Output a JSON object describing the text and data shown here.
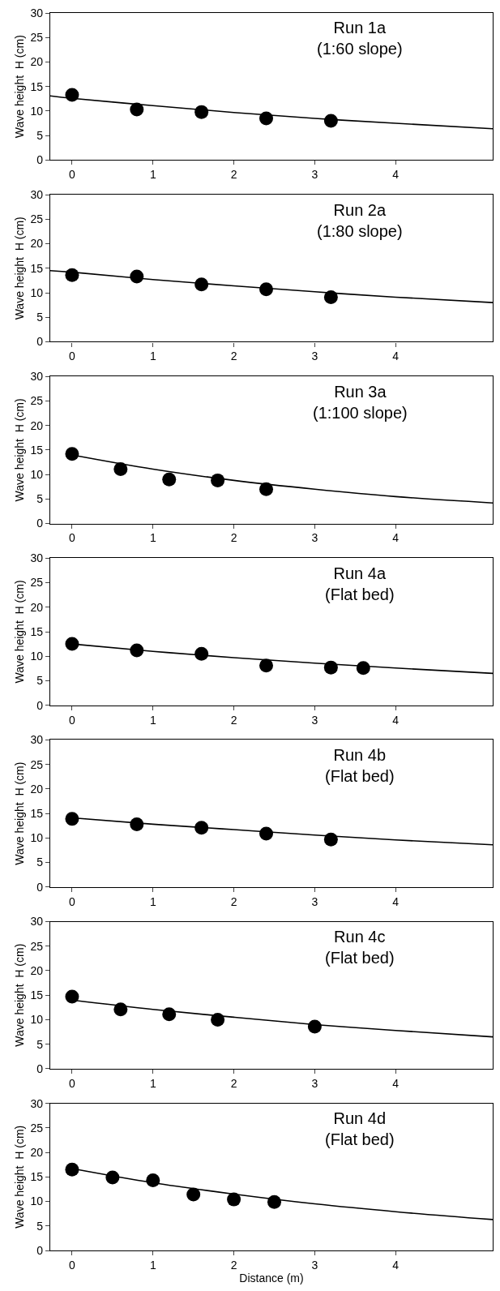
{
  "chart_data": [
    {
      "type": "scatter",
      "title": "Run 1a",
      "subtitle": "(1:60 slope)",
      "ylabel": "Wave height  H (cm)",
      "xlim": [
        -0.27,
        5.2
      ],
      "xticks": [
        0,
        1,
        2,
        3,
        4
      ],
      "ylim": [
        0,
        30
      ],
      "yticks": [
        0,
        5,
        10,
        15,
        20,
        25,
        30
      ],
      "series": [
        {
          "color": "#000000",
          "marker": "circle",
          "x": [
            0,
            0.8,
            1.6,
            2.4,
            3.2
          ],
          "values": [
            13.3,
            10.3,
            9.8,
            8.5,
            8.0
          ]
        },
        {
          "type": "line",
          "marker": "none",
          "color": "#000000",
          "line_style": "solid",
          "x": [
            -0.27,
            0,
            1,
            2,
            3,
            4,
            5.2
          ],
          "values": [
            13.1,
            12.6,
            11.1,
            9.7,
            8.5,
            7.5,
            6.4
          ]
        }
      ]
    },
    {
      "type": "scatter",
      "title": "Run 2a",
      "subtitle": "(1:80 slope)",
      "ylabel": "Wave height  H (cm)",
      "xlim": [
        -0.27,
        5.2
      ],
      "xticks": [
        0,
        1,
        2,
        3,
        4
      ],
      "ylim": [
        0,
        30
      ],
      "yticks": [
        0,
        5,
        10,
        15,
        20,
        25,
        30
      ],
      "series": [
        {
          "color": "#000000",
          "marker": "circle",
          "x": [
            0,
            0.8,
            1.6,
            2.4,
            3.2
          ],
          "values": [
            13.6,
            13.3,
            11.7,
            10.7,
            9.1
          ]
        },
        {
          "type": "line",
          "marker": "none",
          "color": "#000000",
          "line_style": "solid",
          "x": [
            -0.27,
            0,
            1,
            2,
            3,
            4,
            5.2
          ],
          "values": [
            14.5,
            14.2,
            12.7,
            11.4,
            10.2,
            9.1,
            8.0
          ]
        }
      ]
    },
    {
      "type": "scatter",
      "title": "Run 3a",
      "subtitle": "(1:100 slope)",
      "ylabel": "Wave height  H (cm)",
      "xlim": [
        -0.27,
        5.2
      ],
      "xticks": [
        0,
        1,
        2,
        3,
        4
      ],
      "ylim": [
        0,
        30
      ],
      "yticks": [
        0,
        5,
        10,
        15,
        20,
        25,
        30
      ],
      "series": [
        {
          "color": "#000000",
          "marker": "circle",
          "x": [
            0,
            0.6,
            1.2,
            1.8,
            2.4
          ],
          "values": [
            14.2,
            11.1,
            9.0,
            8.8,
            7.0
          ]
        },
        {
          "type": "line",
          "marker": "none",
          "color": "#000000",
          "line_style": "solid",
          "x": [
            0,
            1,
            2,
            3,
            4,
            5.2
          ],
          "values": [
            14.0,
            11.1,
            8.8,
            7.0,
            5.5,
            4.2
          ]
        }
      ]
    },
    {
      "type": "scatter",
      "title": "Run 4a",
      "subtitle": "(Flat bed)",
      "ylabel": "Wave height  H (cm)",
      "xlim": [
        -0.27,
        5.2
      ],
      "xticks": [
        0,
        1,
        2,
        3,
        4
      ],
      "ylim": [
        0,
        30
      ],
      "yticks": [
        0,
        5,
        10,
        15,
        20,
        25,
        30
      ],
      "series": [
        {
          "color": "#000000",
          "marker": "circle",
          "x": [
            0,
            0.8,
            1.6,
            2.4,
            3.2,
            3.6
          ],
          "values": [
            12.5,
            11.2,
            10.5,
            8.1,
            7.7,
            7.6
          ]
        },
        {
          "type": "line",
          "marker": "none",
          "color": "#000000",
          "line_style": "solid",
          "x": [
            0,
            1,
            2,
            3,
            4,
            5.2
          ],
          "values": [
            12.5,
            11.0,
            9.7,
            8.6,
            7.6,
            6.5
          ]
        }
      ]
    },
    {
      "type": "scatter",
      "title": "Run 4b",
      "subtitle": "(Flat bed)",
      "ylabel": "Wave height  H (cm)",
      "xlim": [
        -0.27,
        5.2
      ],
      "xticks": [
        0,
        1,
        2,
        3,
        4
      ],
      "ylim": [
        0,
        30
      ],
      "yticks": [
        0,
        5,
        10,
        15,
        20,
        25,
        30
      ],
      "series": [
        {
          "color": "#000000",
          "marker": "circle",
          "x": [
            0,
            0.8,
            1.6,
            2.4,
            3.2
          ],
          "values": [
            13.9,
            12.8,
            12.1,
            10.9,
            9.7
          ]
        },
        {
          "type": "line",
          "marker": "none",
          "color": "#000000",
          "line_style": "solid",
          "x": [
            0,
            1,
            2,
            3,
            4,
            5.2
          ],
          "values": [
            14.1,
            12.8,
            11.7,
            10.6,
            9.6,
            8.6
          ]
        }
      ]
    },
    {
      "type": "scatter",
      "title": "Run 4c",
      "subtitle": "(Flat bed)",
      "ylabel": "Wave height  H (cm)",
      "xlim": [
        -0.27,
        5.2
      ],
      "xticks": [
        0,
        1,
        2,
        3,
        4
      ],
      "ylim": [
        0,
        30
      ],
      "yticks": [
        0,
        5,
        10,
        15,
        20,
        25,
        30
      ],
      "series": [
        {
          "color": "#000000",
          "marker": "circle",
          "x": [
            0,
            0.6,
            1.2,
            1.8,
            3.0
          ],
          "values": [
            14.7,
            12.1,
            11.1,
            10.0,
            8.6
          ]
        },
        {
          "type": "line",
          "marker": "none",
          "color": "#000000",
          "line_style": "solid",
          "x": [
            0,
            1,
            2,
            3,
            4,
            5.2
          ],
          "values": [
            14.0,
            12.1,
            10.5,
            9.0,
            7.8,
            6.5
          ]
        }
      ]
    },
    {
      "type": "scatter",
      "title": "Run 4d",
      "subtitle": "(Flat bed)",
      "ylabel": "Wave height  H (cm)",
      "xlabel": "Distance (m)",
      "xlim": [
        -0.27,
        5.2
      ],
      "xticks": [
        0,
        1,
        2,
        3,
        4
      ],
      "ylim": [
        0,
        30
      ],
      "yticks": [
        0,
        5,
        10,
        15,
        20,
        25,
        30
      ],
      "series": [
        {
          "color": "#000000",
          "marker": "circle",
          "x": [
            0,
            0.5,
            1.0,
            1.5,
            2.0,
            2.5
          ],
          "values": [
            16.5,
            14.9,
            14.3,
            11.4,
            10.4,
            9.9
          ]
        },
        {
          "type": "line",
          "marker": "none",
          "color": "#000000",
          "line_style": "solid",
          "x": [
            0,
            1,
            2,
            3,
            4,
            5.2
          ],
          "values": [
            16.7,
            13.8,
            11.5,
            9.5,
            7.9,
            6.3
          ]
        }
      ]
    }
  ]
}
